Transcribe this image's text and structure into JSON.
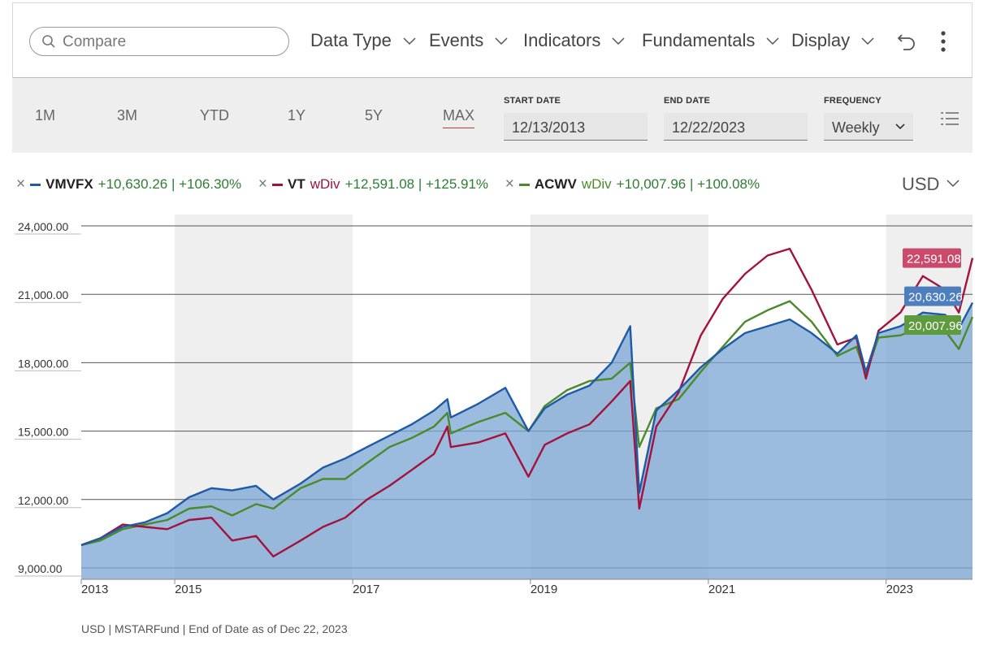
{
  "toolbar": {
    "search_placeholder": "Compare",
    "menu": [
      "Data Type",
      "Events",
      "Indicators",
      "Fundamentals",
      "Display"
    ]
  },
  "range_buttons": [
    "1M",
    "3M",
    "YTD",
    "1Y",
    "5Y",
    "MAX"
  ],
  "active_range": "MAX",
  "dates": {
    "start_label": "START DATE",
    "start_value": "12/13/2013",
    "end_label": "END DATE",
    "end_value": "12/22/2023",
    "frequency_label": "FREQUENCY",
    "frequency_value": "Weekly"
  },
  "legend": [
    {
      "ticker": "VMVFX",
      "wdiv": "",
      "change": "+10,630.26 | +106.30%",
      "color": "#1f5aa6"
    },
    {
      "ticker": "VT",
      "wdiv": "wDiv",
      "change": "+12,591.08 | +125.91%",
      "color": "#a3123c",
      "wdiv_color": "#a3123c"
    },
    {
      "ticker": "ACWV",
      "wdiv": "wDiv",
      "change": "+10,007.96 | +100.08%",
      "color": "#4a8a2a",
      "wdiv_color": "#4a8a2a"
    }
  ],
  "currency": "USD",
  "footer": "USD | MSTARFund | End of Date as of Dec 22, 2023",
  "chart_data": {
    "type": "line",
    "x_ticks": [
      "2013",
      "2015",
      "2017",
      "2019",
      "2021",
      "2023"
    ],
    "y_ticks": [
      "9,000.00",
      "12,000.00",
      "15,000.00",
      "18,000.00",
      "21,000.00",
      "24,000.00"
    ],
    "ylim": [
      8500,
      24500
    ],
    "xlim": [
      "2013-12-13",
      "2023-12-22"
    ],
    "series": [
      {
        "name": "VMVFX",
        "color": "#1f5aa6",
        "end_label": "20,630.26",
        "points": [
          [
            "2013-12-13",
            10000
          ],
          [
            "2014-03-01",
            10300
          ],
          [
            "2014-06-01",
            10800
          ],
          [
            "2014-09-01",
            11000
          ],
          [
            "2014-12-01",
            11400
          ],
          [
            "2015-03-01",
            12100
          ],
          [
            "2015-06-01",
            12500
          ],
          [
            "2015-08-25",
            12400
          ],
          [
            "2015-12-01",
            12600
          ],
          [
            "2016-02-10",
            12000
          ],
          [
            "2016-06-01",
            12700
          ],
          [
            "2016-09-01",
            13400
          ],
          [
            "2016-12-01",
            13800
          ],
          [
            "2017-03-01",
            14300
          ],
          [
            "2017-06-01",
            14800
          ],
          [
            "2017-09-01",
            15300
          ],
          [
            "2017-12-01",
            15900
          ],
          [
            "2018-01-25",
            16400
          ],
          [
            "2018-02-08",
            15600
          ],
          [
            "2018-06-01",
            16200
          ],
          [
            "2018-09-20",
            16900
          ],
          [
            "2018-12-24",
            15000
          ],
          [
            "2019-03-01",
            16000
          ],
          [
            "2019-06-01",
            16600
          ],
          [
            "2019-09-01",
            17000
          ],
          [
            "2019-12-01",
            18000
          ],
          [
            "2020-02-15",
            19600
          ],
          [
            "2020-03-23",
            12300
          ],
          [
            "2020-06-01",
            15900
          ],
          [
            "2020-09-01",
            16800
          ],
          [
            "2020-12-01",
            17800
          ],
          [
            "2021-03-01",
            18600
          ],
          [
            "2021-06-01",
            19300
          ],
          [
            "2021-09-01",
            19600
          ],
          [
            "2021-12-01",
            19900
          ],
          [
            "2022-03-01",
            19300
          ],
          [
            "2022-06-15",
            18400
          ],
          [
            "2022-09-01",
            19200
          ],
          [
            "2022-10-10",
            17600
          ],
          [
            "2022-12-01",
            19300
          ],
          [
            "2023-03-01",
            19600
          ],
          [
            "2023-06-01",
            20200
          ],
          [
            "2023-09-01",
            20100
          ],
          [
            "2023-10-27",
            19500
          ],
          [
            "2023-12-22",
            20630.26
          ]
        ]
      },
      {
        "name": "VT wDiv",
        "color": "#a3123c",
        "end_label": "22,591.08",
        "points": [
          [
            "2013-12-13",
            10000
          ],
          [
            "2014-03-01",
            10300
          ],
          [
            "2014-06-01",
            10900
          ],
          [
            "2014-09-01",
            10800
          ],
          [
            "2014-12-01",
            10700
          ],
          [
            "2015-03-01",
            11100
          ],
          [
            "2015-06-01",
            11200
          ],
          [
            "2015-08-25",
            10200
          ],
          [
            "2015-12-01",
            10400
          ],
          [
            "2016-02-10",
            9500
          ],
          [
            "2016-06-01",
            10200
          ],
          [
            "2016-09-01",
            10800
          ],
          [
            "2016-12-01",
            11200
          ],
          [
            "2017-03-01",
            12000
          ],
          [
            "2017-06-01",
            12600
          ],
          [
            "2017-09-01",
            13300
          ],
          [
            "2017-12-01",
            14000
          ],
          [
            "2018-01-25",
            15200
          ],
          [
            "2018-02-08",
            14300
          ],
          [
            "2018-06-01",
            14500
          ],
          [
            "2018-09-20",
            14900
          ],
          [
            "2018-12-24",
            13000
          ],
          [
            "2019-03-01",
            14400
          ],
          [
            "2019-06-01",
            14900
          ],
          [
            "2019-09-01",
            15300
          ],
          [
            "2019-12-01",
            16300
          ],
          [
            "2020-02-15",
            17200
          ],
          [
            "2020-03-23",
            11600
          ],
          [
            "2020-06-01",
            15200
          ],
          [
            "2020-09-01",
            16700
          ],
          [
            "2020-12-01",
            19200
          ],
          [
            "2021-03-01",
            20800
          ],
          [
            "2021-06-01",
            21900
          ],
          [
            "2021-09-01",
            22700
          ],
          [
            "2021-12-01",
            23000
          ],
          [
            "2022-03-01",
            21200
          ],
          [
            "2022-06-15",
            18800
          ],
          [
            "2022-09-01",
            19100
          ],
          [
            "2022-10-10",
            17300
          ],
          [
            "2022-12-01",
            19400
          ],
          [
            "2023-03-01",
            20200
          ],
          [
            "2023-06-01",
            21800
          ],
          [
            "2023-09-01",
            21200
          ],
          [
            "2023-10-27",
            20200
          ],
          [
            "2023-12-22",
            22591.08
          ]
        ]
      },
      {
        "name": "ACWV wDiv",
        "color": "#4a8a2a",
        "end_label": "20,007.96",
        "points": [
          [
            "2013-12-13",
            10000
          ],
          [
            "2014-03-01",
            10200
          ],
          [
            "2014-06-01",
            10700
          ],
          [
            "2014-09-01",
            10900
          ],
          [
            "2014-12-01",
            11100
          ],
          [
            "2015-03-01",
            11600
          ],
          [
            "2015-06-01",
            11700
          ],
          [
            "2015-08-25",
            11300
          ],
          [
            "2015-12-01",
            11800
          ],
          [
            "2016-02-10",
            11600
          ],
          [
            "2016-06-01",
            12500
          ],
          [
            "2016-09-01",
            12900
          ],
          [
            "2016-12-01",
            12900
          ],
          [
            "2017-03-01",
            13600
          ],
          [
            "2017-06-01",
            14300
          ],
          [
            "2017-09-01",
            14700
          ],
          [
            "2017-12-01",
            15200
          ],
          [
            "2018-01-25",
            15800
          ],
          [
            "2018-02-08",
            14900
          ],
          [
            "2018-06-01",
            15400
          ],
          [
            "2018-09-20",
            15800
          ],
          [
            "2018-12-24",
            15000
          ],
          [
            "2019-03-01",
            16100
          ],
          [
            "2019-06-01",
            16800
          ],
          [
            "2019-09-01",
            17200
          ],
          [
            "2019-12-01",
            17300
          ],
          [
            "2020-02-15",
            18000
          ],
          [
            "2020-03-23",
            14300
          ],
          [
            "2020-06-01",
            16000
          ],
          [
            "2020-09-01",
            16400
          ],
          [
            "2020-12-01",
            17600
          ],
          [
            "2021-03-01",
            18700
          ],
          [
            "2021-06-01",
            19800
          ],
          [
            "2021-09-01",
            20300
          ],
          [
            "2021-12-01",
            20700
          ],
          [
            "2022-03-01",
            19800
          ],
          [
            "2022-06-15",
            18300
          ],
          [
            "2022-09-01",
            18700
          ],
          [
            "2022-10-10",
            17500
          ],
          [
            "2022-12-01",
            19100
          ],
          [
            "2023-03-01",
            19200
          ],
          [
            "2023-06-01",
            19600
          ],
          [
            "2023-09-01",
            19400
          ],
          [
            "2023-10-27",
            18600
          ],
          [
            "2023-12-22",
            20007.96
          ]
        ]
      }
    ]
  }
}
